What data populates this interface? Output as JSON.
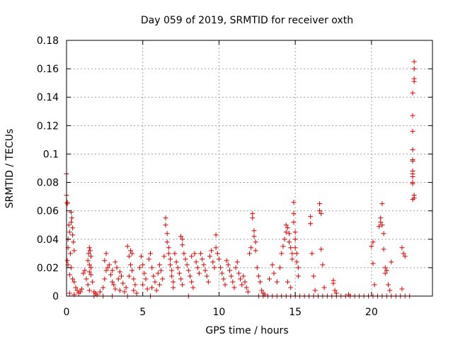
{
  "chart_data": {
    "type": "scatter",
    "title": "Day 059 of 2019, SRMTID for receiver oxth",
    "xlabel": "GPS time / hours",
    "ylabel": "SRMTID / TECUs",
    "xlim": [
      0,
      24
    ],
    "ylim": [
      0,
      0.18
    ],
    "x_ticks": [
      0,
      5,
      10,
      15,
      20
    ],
    "x_tick_labels": [
      "0",
      "5",
      "10",
      "15",
      "20"
    ],
    "y_ticks": [
      0,
      0.02,
      0.04,
      0.06,
      0.08,
      0.1,
      0.12,
      0.14,
      0.16,
      0.18
    ],
    "y_tick_labels": [
      "0",
      "0.02",
      "0.04",
      "0.06",
      "0.08",
      "0.1",
      "0.12",
      "0.14",
      "0.16",
      "0.18"
    ],
    "grid": true,
    "marker": "+",
    "color": "#e00000",
    "series": [
      {
        "points": [
          [
            0.0,
            0.086
          ],
          [
            0.0,
            0.071
          ],
          [
            0.05,
            0.066
          ],
          [
            0.05,
            0.065
          ],
          [
            0.1,
            0.04
          ],
          [
            0.1,
            0.034
          ],
          [
            0.05,
            0.025
          ],
          [
            0.1,
            0.022
          ],
          [
            0.15,
            0.05
          ],
          [
            0.2,
            0.045
          ],
          [
            0.25,
            0.03
          ],
          [
            0.3,
            0.059
          ],
          [
            0.35,
            0.055
          ],
          [
            0.3,
            0.052
          ],
          [
            0.4,
            0.048
          ],
          [
            0.4,
            0.043
          ],
          [
            0.45,
            0.038
          ],
          [
            0.5,
            0.032
          ],
          [
            0.3,
            0.02
          ],
          [
            0.2,
            0.015
          ],
          [
            0.4,
            0.012
          ],
          [
            0.5,
            0.01
          ],
          [
            0.6,
            0.006
          ],
          [
            0.7,
            0.004
          ],
          [
            0.2,
            0.002
          ],
          [
            0.5,
            0.001
          ],
          [
            0.8,
            0.002
          ],
          [
            0.9,
            0.003
          ],
          [
            1.0,
            0.005
          ],
          [
            1.1,
            0.016
          ],
          [
            1.2,
            0.018
          ],
          [
            1.3,
            0.012
          ],
          [
            1.4,
            0.025
          ],
          [
            1.45,
            0.03
          ],
          [
            1.5,
            0.034
          ],
          [
            1.55,
            0.032
          ],
          [
            1.6,
            0.028
          ],
          [
            1.5,
            0.022
          ],
          [
            1.6,
            0.02
          ],
          [
            1.5,
            0.017
          ],
          [
            1.6,
            0.015
          ],
          [
            1.7,
            0.01
          ],
          [
            1.4,
            0.008
          ],
          [
            1.5,
            0.004
          ],
          [
            1.8,
            0.003
          ],
          [
            1.9,
            0.002
          ],
          [
            2.0,
            0.001
          ],
          [
            2.2,
            0.003
          ],
          [
            2.4,
            0.006
          ],
          [
            2.5,
            0.012
          ],
          [
            2.6,
            0.018
          ],
          [
            2.7,
            0.02
          ],
          [
            2.5,
            0.025
          ],
          [
            2.6,
            0.03
          ],
          [
            2.8,
            0.022
          ],
          [
            2.9,
            0.015
          ],
          [
            3.0,
            0.01
          ],
          [
            3.1,
            0.008
          ],
          [
            3.2,
            0.005
          ],
          [
            3.0,
            0.018
          ],
          [
            3.2,
            0.024
          ],
          [
            3.3,
            0.02
          ],
          [
            3.4,
            0.012
          ],
          [
            3.5,
            0.017
          ],
          [
            3.6,
            0.014
          ],
          [
            3.7,
            0.009
          ],
          [
            3.5,
            0.004
          ],
          [
            3.8,
            0.003
          ],
          [
            3.9,
            0.006
          ],
          [
            4.0,
            0.035
          ],
          [
            4.1,
            0.028
          ],
          [
            4.2,
            0.032
          ],
          [
            4.3,
            0.03
          ],
          [
            4.2,
            0.022
          ],
          [
            4.3,
            0.018
          ],
          [
            4.1,
            0.014
          ],
          [
            4.4,
            0.012
          ],
          [
            4.5,
            0.008
          ],
          [
            4.4,
            0.004
          ],
          [
            4.6,
            0.002
          ],
          [
            4.8,
            0.02
          ],
          [
            4.9,
            0.028
          ],
          [
            5.0,
            0.022
          ],
          [
            5.1,
            0.016
          ],
          [
            5.2,
            0.012
          ],
          [
            5.0,
            0.008
          ],
          [
            5.3,
            0.005
          ],
          [
            5.4,
            0.026
          ],
          [
            5.5,
            0.03
          ],
          [
            5.6,
            0.02
          ],
          [
            5.7,
            0.014
          ],
          [
            5.8,
            0.01
          ],
          [
            5.6,
            0.006
          ],
          [
            5.9,
            0.004
          ],
          [
            6.0,
            0.016
          ],
          [
            6.1,
            0.022
          ],
          [
            6.2,
            0.018
          ],
          [
            6.3,
            0.012
          ],
          [
            6.1,
            0.008
          ],
          [
            6.4,
            0.028
          ],
          [
            6.5,
            0.055
          ],
          [
            6.5,
            0.05
          ],
          [
            6.6,
            0.044
          ],
          [
            6.6,
            0.038
          ],
          [
            6.7,
            0.034
          ],
          [
            6.7,
            0.03
          ],
          [
            6.8,
            0.026
          ],
          [
            6.8,
            0.022
          ],
          [
            6.9,
            0.018
          ],
          [
            6.9,
            0.014
          ],
          [
            7.0,
            0.01
          ],
          [
            7.0,
            0.006
          ],
          [
            7.1,
            0.03
          ],
          [
            7.2,
            0.024
          ],
          [
            7.3,
            0.02
          ],
          [
            7.4,
            0.016
          ],
          [
            7.5,
            0.012
          ],
          [
            7.6,
            0.008
          ],
          [
            7.5,
            0.042
          ],
          [
            7.6,
            0.04
          ],
          [
            7.6,
            0.036
          ],
          [
            7.7,
            0.03
          ],
          [
            7.8,
            0.026
          ],
          [
            7.9,
            0.022
          ],
          [
            8.0,
            0.018
          ],
          [
            8.1,
            0.014
          ],
          [
            8.2,
            0.01
          ],
          [
            8.3,
            0.006
          ],
          [
            8.2,
            0.028
          ],
          [
            8.4,
            0.03
          ],
          [
            8.5,
            0.024
          ],
          [
            8.6,
            0.02
          ],
          [
            8.7,
            0.016
          ],
          [
            8.8,
            0.03
          ],
          [
            8.9,
            0.026
          ],
          [
            9.0,
            0.022
          ],
          [
            9.1,
            0.018
          ],
          [
            9.2,
            0.014
          ],
          [
            9.3,
            0.01
          ],
          [
            9.4,
            0.028
          ],
          [
            9.5,
            0.032
          ],
          [
            9.6,
            0.024
          ],
          [
            9.7,
            0.02
          ],
          [
            9.8,
            0.043
          ],
          [
            9.8,
            0.034
          ],
          [
            9.9,
            0.03
          ],
          [
            10.0,
            0.026
          ],
          [
            10.1,
            0.02
          ],
          [
            10.2,
            0.016
          ],
          [
            10.3,
            0.012
          ],
          [
            10.4,
            0.008
          ],
          [
            10.5,
            0.025
          ],
          [
            10.6,
            0.022
          ],
          [
            10.7,
            0.018
          ],
          [
            10.8,
            0.014
          ],
          [
            10.9,
            0.01
          ],
          [
            11.0,
            0.006
          ],
          [
            11.1,
            0.02
          ],
          [
            11.2,
            0.024
          ],
          [
            11.3,
            0.016
          ],
          [
            11.4,
            0.012
          ],
          [
            11.5,
            0.008
          ],
          [
            11.6,
            0.014
          ],
          [
            11.7,
            0.01
          ],
          [
            11.8,
            0.006
          ],
          [
            11.9,
            0.003
          ],
          [
            12.0,
            0.03
          ],
          [
            12.1,
            0.034
          ],
          [
            12.2,
            0.058
          ],
          [
            12.2,
            0.055
          ],
          [
            12.3,
            0.046
          ],
          [
            12.3,
            0.042
          ],
          [
            12.4,
            0.038
          ],
          [
            12.4,
            0.032
          ],
          [
            12.5,
            0.02
          ],
          [
            12.6,
            0.014
          ],
          [
            12.7,
            0.01
          ],
          [
            12.8,
            0.004
          ],
          [
            12.9,
            0.002
          ],
          [
            13.0,
            0.001
          ],
          [
            13.3,
            0.012
          ],
          [
            13.5,
            0.022
          ],
          [
            13.6,
            0.016
          ],
          [
            13.8,
            0.01
          ],
          [
            14.0,
            0.02
          ],
          [
            14.1,
            0.03
          ],
          [
            14.2,
            0.035
          ],
          [
            14.3,
            0.04
          ],
          [
            14.4,
            0.045
          ],
          [
            14.4,
            0.05
          ],
          [
            14.5,
            0.048
          ],
          [
            14.6,
            0.044
          ],
          [
            14.6,
            0.038
          ],
          [
            14.7,
            0.034
          ],
          [
            14.8,
            0.03
          ],
          [
            14.8,
            0.026
          ],
          [
            14.9,
            0.066
          ],
          [
            14.9,
            0.058
          ],
          [
            14.9,
            0.052
          ],
          [
            15.0,
            0.045
          ],
          [
            15.0,
            0.04
          ],
          [
            15.0,
            0.034
          ],
          [
            15.1,
            0.03
          ],
          [
            15.1,
            0.024
          ],
          [
            15.2,
            0.02
          ],
          [
            15.2,
            0.014
          ],
          [
            14.5,
            0.01
          ],
          [
            14.7,
            0.006
          ],
          [
            16.0,
            0.056
          ],
          [
            16.0,
            0.051
          ],
          [
            16.1,
            0.03
          ],
          [
            16.2,
            0.014
          ],
          [
            16.3,
            0.004
          ],
          [
            16.6,
            0.065
          ],
          [
            16.6,
            0.06
          ],
          [
            16.7,
            0.058
          ],
          [
            16.7,
            0.033
          ],
          [
            16.8,
            0.022
          ],
          [
            16.9,
            0.006
          ],
          [
            17.5,
            0.011
          ],
          [
            17.5,
            0.009
          ],
          [
            17.6,
            0.004
          ],
          [
            17.7,
            0.002
          ],
          [
            18.5,
            0.001
          ],
          [
            20.0,
            0.035
          ],
          [
            20.1,
            0.038
          ],
          [
            20.1,
            0.023
          ],
          [
            20.2,
            0.008
          ],
          [
            20.5,
            0.049
          ],
          [
            20.6,
            0.052
          ],
          [
            20.6,
            0.055
          ],
          [
            20.7,
            0.065
          ],
          [
            20.7,
            0.05
          ],
          [
            20.8,
            0.044
          ],
          [
            20.8,
            0.033
          ],
          [
            20.9,
            0.02
          ],
          [
            20.9,
            0.016
          ],
          [
            21.0,
            0.018
          ],
          [
            21.1,
            0.008
          ],
          [
            21.2,
            0.004
          ],
          [
            21.3,
            0.024
          ],
          [
            22.0,
            0.034
          ],
          [
            22.1,
            0.03
          ],
          [
            22.2,
            0.028
          ],
          [
            22.0,
            0.005
          ],
          [
            22.8,
            0.165
          ],
          [
            22.8,
            0.16
          ],
          [
            22.8,
            0.153
          ],
          [
            22.8,
            0.151
          ],
          [
            22.7,
            0.143
          ],
          [
            22.7,
            0.127
          ],
          [
            22.7,
            0.116
          ],
          [
            22.7,
            0.103
          ],
          [
            22.7,
            0.096
          ],
          [
            22.7,
            0.095
          ],
          [
            22.7,
            0.088
          ],
          [
            22.7,
            0.086
          ],
          [
            22.7,
            0.084
          ],
          [
            22.7,
            0.08
          ],
          [
            22.7,
            0.079
          ],
          [
            22.8,
            0.071
          ],
          [
            22.8,
            0.069
          ],
          [
            22.7,
            0.068
          ],
          [
            12.6,
            0.0
          ],
          [
            12.9,
            0.0
          ],
          [
            13.2,
            0.0
          ],
          [
            13.5,
            0.0
          ],
          [
            13.8,
            0.0
          ],
          [
            14.1,
            0.0
          ],
          [
            14.4,
            0.0
          ],
          [
            14.7,
            0.0
          ],
          [
            15.0,
            0.0
          ],
          [
            15.3,
            0.0
          ],
          [
            15.6,
            0.0
          ],
          [
            15.9,
            0.0
          ],
          [
            16.2,
            0.0
          ],
          [
            16.5,
            0.0
          ],
          [
            16.8,
            0.0
          ],
          [
            17.1,
            0.0
          ],
          [
            17.4,
            0.0
          ],
          [
            17.7,
            0.0
          ],
          [
            18.0,
            0.0
          ],
          [
            18.3,
            0.0
          ],
          [
            18.6,
            0.0
          ],
          [
            18.9,
            0.0
          ],
          [
            19.2,
            0.0
          ],
          [
            19.5,
            0.0
          ],
          [
            19.8,
            0.0
          ],
          [
            20.1,
            0.0
          ],
          [
            20.4,
            0.0
          ],
          [
            20.7,
            0.0
          ],
          [
            21.0,
            0.0
          ],
          [
            21.3,
            0.0
          ],
          [
            21.6,
            0.0
          ],
          [
            21.9,
            0.0
          ],
          [
            22.2,
            0.0
          ],
          [
            22.5,
            0.0
          ],
          [
            1.8,
            0.0
          ],
          [
            2.4,
            0.0
          ],
          [
            3.0,
            0.0
          ],
          [
            4.0,
            0.0
          ],
          [
            5.5,
            0.0
          ],
          [
            8.0,
            0.0
          ]
        ]
      }
    ]
  }
}
